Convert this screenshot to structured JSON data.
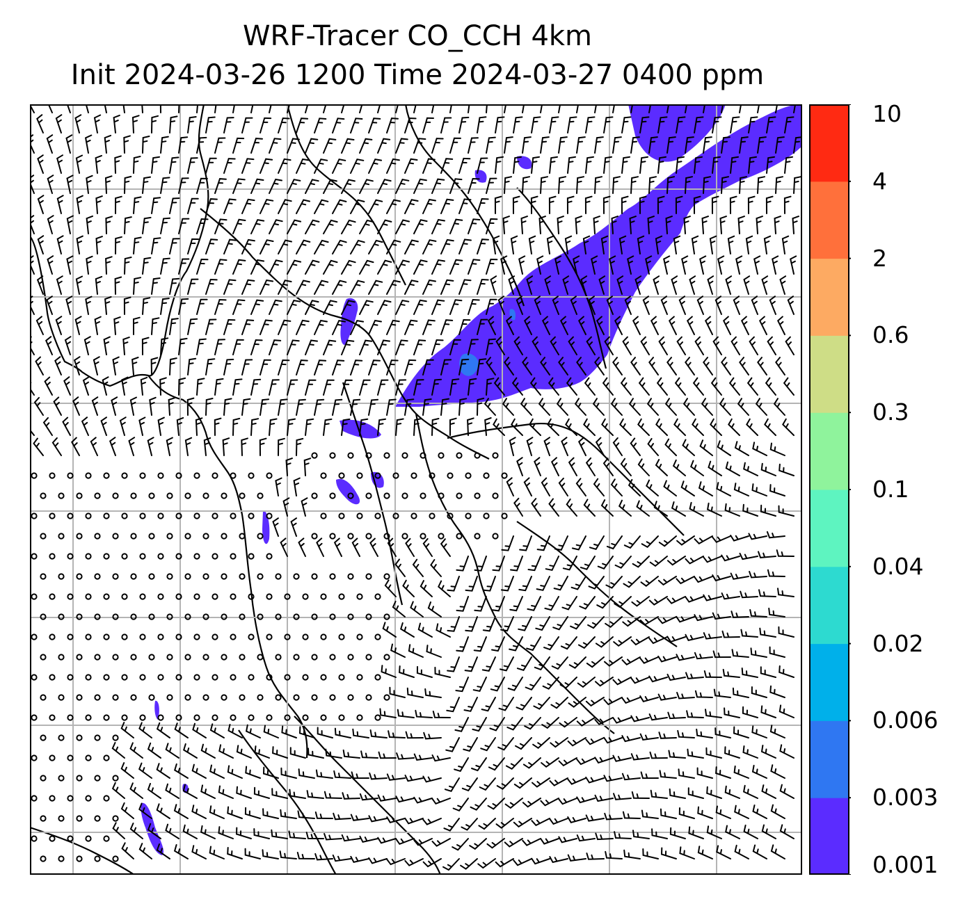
{
  "title": {
    "line1": "WRF-Tracer CO_CCH 4km",
    "line2": "Init 2024-03-26 1200 Time 2024-03-27 0400 ppm"
  },
  "colorbar": {
    "levels": [
      "0.001",
      "0.003",
      "0.006",
      "0.02",
      "0.04",
      "0.1",
      "0.3",
      "0.6",
      "2",
      "4",
      "10"
    ],
    "colors": [
      "#5b2cff",
      "#2f77f2",
      "#00b0ea",
      "#2ddad0",
      "#5ef4c0",
      "#8ff39c",
      "#cedd86",
      "#fdaa62",
      "#ff703b",
      "#ff2a12"
    ]
  },
  "map": {
    "field": "CO_CCH tracer",
    "units": "ppm",
    "gridlines": true,
    "wind_barbs": true,
    "background": "#ffffff",
    "land_boundary_color": "#000000"
  }
}
